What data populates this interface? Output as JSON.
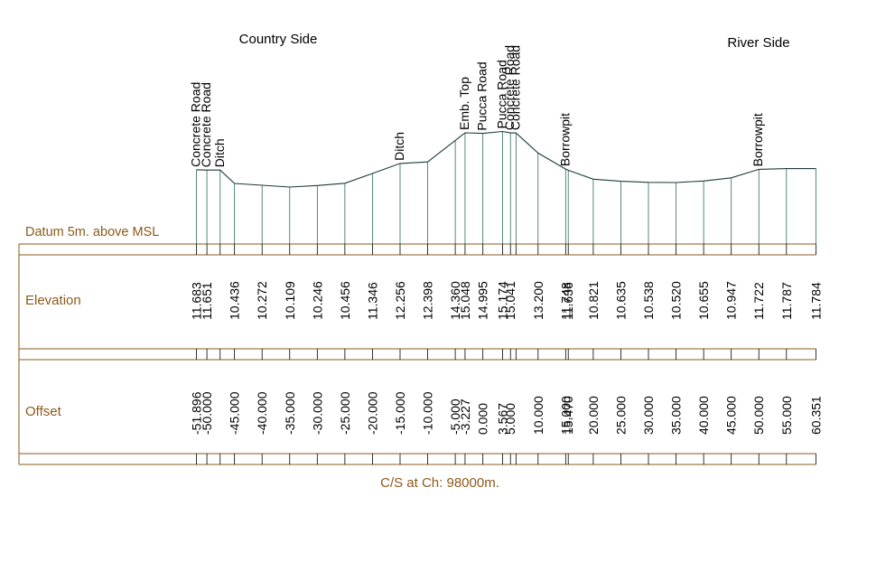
{
  "header": {
    "left_side": "Country Side",
    "right_side": "River Side"
  },
  "datum_label": "Datum 5m. above MSL",
  "rows": {
    "elevation_label": "Elevation",
    "offset_label": "Offset"
  },
  "footer": {
    "caption": "C/S at Ch: 98000m."
  },
  "colors": {
    "frame": "#8b5a1a",
    "profile": "#1f3a3a",
    "verticals": "#2e6b5a",
    "text": "#000000",
    "label_text": "#8b5a1a"
  },
  "chart_data": {
    "type": "line",
    "x_unit": "m (offset)",
    "y_unit": "m (elevation)",
    "points": [
      {
        "offset": -51.896,
        "elevation": 11.683,
        "offset_label": "-51.896",
        "elevation_label": "11.683",
        "feature": "Concrete Road"
      },
      {
        "offset": -50.0,
        "elevation": 11.651,
        "offset_label": "-50.000",
        "elevation_label": "11.651",
        "feature": "Concrete Road"
      },
      {
        "offset": -47.6,
        "elevation": 11.651,
        "offset_label": "",
        "elevation_label": "",
        "feature": "Ditch"
      },
      {
        "offset": -45.0,
        "elevation": 10.436,
        "offset_label": "-45.000",
        "elevation_label": "10.436",
        "feature": ""
      },
      {
        "offset": -40.0,
        "elevation": 10.272,
        "offset_label": "-40.000",
        "elevation_label": "10.272",
        "feature": ""
      },
      {
        "offset": -35.0,
        "elevation": 10.109,
        "offset_label": "-35.000",
        "elevation_label": "10.109",
        "feature": ""
      },
      {
        "offset": -30.0,
        "elevation": 10.246,
        "offset_label": "-30.000",
        "elevation_label": "10.246",
        "feature": ""
      },
      {
        "offset": -25.0,
        "elevation": 10.456,
        "offset_label": "-25.000",
        "elevation_label": "10.456",
        "feature": ""
      },
      {
        "offset": -20.0,
        "elevation": 11.346,
        "offset_label": "-20.000",
        "elevation_label": "11.346",
        "feature": ""
      },
      {
        "offset": -15.0,
        "elevation": 12.256,
        "offset_label": "-15.000",
        "elevation_label": "12.256",
        "feature": "Ditch"
      },
      {
        "offset": -10.0,
        "elevation": 12.398,
        "offset_label": "-10.000",
        "elevation_label": "12.398",
        "feature": ""
      },
      {
        "offset": -5.0,
        "elevation": 14.36,
        "offset_label": "-5.000",
        "elevation_label": "14.360",
        "feature": ""
      },
      {
        "offset": -3.227,
        "elevation": 15.048,
        "offset_label": "-3.227",
        "elevation_label": "15.048",
        "feature": "Emb. Top"
      },
      {
        "offset": 0.0,
        "elevation": 14.995,
        "offset_label": "0.000",
        "elevation_label": "14.995",
        "feature": "Pucca Road"
      },
      {
        "offset": 3.567,
        "elevation": 15.174,
        "offset_label": "3.567",
        "elevation_label": "15.174",
        "feature": "Pucca Road"
      },
      {
        "offset": 5.0,
        "elevation": 15.041,
        "offset_label": "5.000",
        "elevation_label": "15.041",
        "feature": "Concrete Road"
      },
      {
        "offset": 6.0,
        "elevation": 15.041,
        "offset_label": "",
        "elevation_label": "",
        "feature": "Concrete Road"
      },
      {
        "offset": 10.0,
        "elevation": 13.2,
        "offset_label": "10.000",
        "elevation_label": "13.200",
        "feature": ""
      },
      {
        "offset": 15.0,
        "elevation": 11.748,
        "offset_label": "15.000",
        "elevation_label": "11.748",
        "feature": "Borrowpit"
      },
      {
        "offset": 15.47,
        "elevation": 11.636,
        "offset_label": "15.470",
        "elevation_label": "11.636",
        "feature": ""
      },
      {
        "offset": 20.0,
        "elevation": 10.821,
        "offset_label": "20.000",
        "elevation_label": "10.821",
        "feature": ""
      },
      {
        "offset": 25.0,
        "elevation": 10.635,
        "offset_label": "25.000",
        "elevation_label": "10.635",
        "feature": ""
      },
      {
        "offset": 30.0,
        "elevation": 10.538,
        "offset_label": "30.000",
        "elevation_label": "10.538",
        "feature": ""
      },
      {
        "offset": 35.0,
        "elevation": 10.52,
        "offset_label": "35.000",
        "elevation_label": "10.520",
        "feature": ""
      },
      {
        "offset": 40.0,
        "elevation": 10.655,
        "offset_label": "40.000",
        "elevation_label": "10.655",
        "feature": ""
      },
      {
        "offset": 45.0,
        "elevation": 10.947,
        "offset_label": "45.000",
        "elevation_label": "10.947",
        "feature": ""
      },
      {
        "offset": 50.0,
        "elevation": 11.722,
        "offset_label": "50.000",
        "elevation_label": "11.722",
        "feature": "Borrowpit"
      },
      {
        "offset": 55.0,
        "elevation": 11.787,
        "offset_label": "55.000",
        "elevation_label": "11.787",
        "feature": ""
      },
      {
        "offset": 60.351,
        "elevation": 11.784,
        "offset_label": "60.351",
        "elevation_label": "11.784",
        "feature": ""
      }
    ]
  }
}
